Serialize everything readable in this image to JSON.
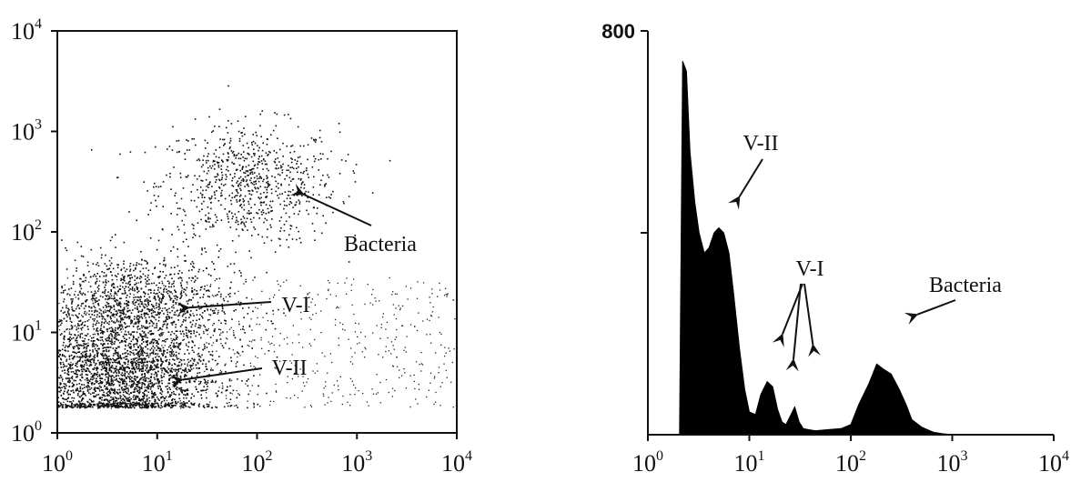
{
  "chart_data": [
    {
      "type": "scatter",
      "xscale": "log",
      "yscale": "log",
      "xlim": [
        1,
        10000
      ],
      "ylim": [
        1,
        10000
      ],
      "x_ticks": [
        {
          "base": "10",
          "exp": "0"
        },
        {
          "base": "10",
          "exp": "1"
        },
        {
          "base": "10",
          "exp": "2"
        },
        {
          "base": "10",
          "exp": "3"
        },
        {
          "base": "10",
          "exp": "4"
        }
      ],
      "y_ticks": [
        {
          "base": "10",
          "exp": "0"
        },
        {
          "base": "10",
          "exp": "1"
        },
        {
          "base": "10",
          "exp": "2"
        },
        {
          "base": "10",
          "exp": "3"
        },
        {
          "base": "10",
          "exp": "4"
        }
      ],
      "clusters": [
        {
          "label": "Bacteria",
          "x_center": 80,
          "y_center": 300,
          "spread_decades": [
            0.45,
            0.3
          ],
          "relative_density": 0.25
        },
        {
          "label": "V-I",
          "x_center": 6,
          "y_center": 20,
          "spread_decades": [
            0.5,
            0.25
          ],
          "relative_density": 0.35
        },
        {
          "label": "V-II",
          "x_center": 4,
          "y_center": 4,
          "spread_decades": [
            0.5,
            0.3
          ],
          "relative_density": 1.0
        }
      ],
      "annotations": [
        {
          "text": "Bacteria",
          "points_to": [
            200,
            200
          ]
        },
        {
          "text": "V-I",
          "points_to": [
            20,
            20
          ]
        },
        {
          "text": "V-II",
          "points_to": [
            18,
            4
          ]
        }
      ]
    },
    {
      "type": "area",
      "xscale": "log",
      "xlim": [
        1,
        10000
      ],
      "ylim": [
        0,
        800
      ],
      "y_tick_labels": [
        "800"
      ],
      "x_ticks": [
        {
          "base": "10",
          "exp": "0"
        },
        {
          "base": "10",
          "exp": "1"
        },
        {
          "base": "10",
          "exp": "2"
        },
        {
          "base": "10",
          "exp": "3"
        },
        {
          "base": "10",
          "exp": "4"
        }
      ],
      "x": [
        2.05,
        2.2,
        2.4,
        2.6,
        2.9,
        3.2,
        3.6,
        4.0,
        4.5,
        5.0,
        5.6,
        6.3,
        7.0,
        8.0,
        9.0,
        10.0,
        11.5,
        13,
        15,
        17,
        19,
        21,
        23,
        25,
        28,
        31,
        34,
        38,
        45,
        60,
        80,
        100,
        120,
        150,
        180,
        210,
        250,
        300,
        350,
        400,
        500,
        650,
        800,
        1000
      ],
      "y": [
        0,
        740,
        720,
        560,
        460,
        400,
        360,
        370,
        400,
        410,
        400,
        360,
        280,
        170,
        90,
        45,
        40,
        80,
        105,
        95,
        50,
        25,
        20,
        35,
        55,
        25,
        12,
        10,
        8,
        10,
        12,
        20,
        60,
        100,
        140,
        130,
        120,
        90,
        60,
        30,
        15,
        5,
        2,
        0
      ],
      "annotations": [
        {
          "text": "V-II",
          "points_to": [
            6,
            400
          ]
        },
        {
          "text": "V-I",
          "points_to": [
            18,
            120
          ]
        },
        {
          "text": "V-I",
          "points_to": [
            28,
            110
          ]
        },
        {
          "text": "Bacteria",
          "points_to": [
            400,
            130
          ]
        }
      ]
    }
  ]
}
